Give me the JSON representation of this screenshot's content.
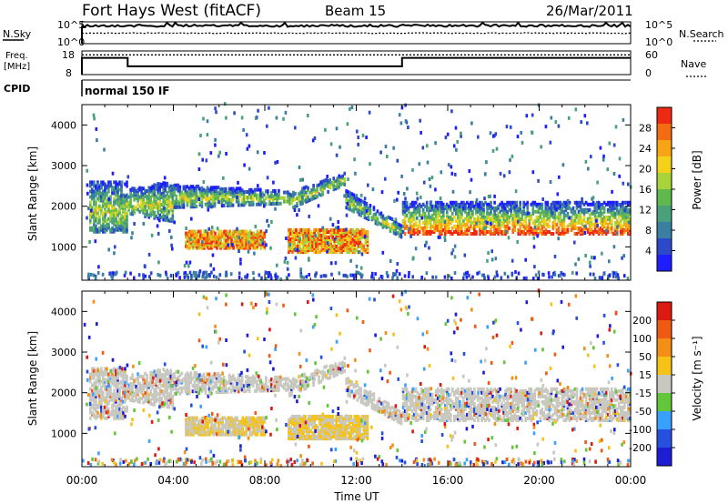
{
  "header": {
    "station": "Fort Hays West (fitACF)",
    "beam": "Beam 15",
    "date": "26/Mar/2011"
  },
  "labels": {
    "nsky": "N.Sky",
    "nsearch": "N.Search",
    "freq_line1": "Freq.",
    "freq_line2": "[MHz]",
    "nave": "Nave",
    "cpid": "CPID",
    "cpid_value": "normal 150 IF"
  },
  "colors": {
    "power": [
      "#1d1dff",
      "#2b49c8",
      "#3a7fa0",
      "#4aa07a",
      "#61b84e",
      "#a8d43a",
      "#f5d21a",
      "#f7a514",
      "#f36b12",
      "#ee2a12"
    ],
    "velocity": [
      "#1d1dd6",
      "#2850e0",
      "#39a0ff",
      "#63c63a",
      "#c8c8c0",
      "#f5c318",
      "#f28f14",
      "#ee5a14",
      "#dd1a12"
    ],
    "axis": "#000000"
  },
  "chart_data": [
    {
      "type": "line",
      "panel": "noise",
      "series": [
        {
          "name": "N.Sky",
          "style": "solid"
        },
        {
          "name": "N.Search",
          "style": "dotted"
        }
      ],
      "yticks_left": [
        "10^5",
        "10^0"
      ],
      "yticks_right": [
        "10^5",
        "10^0"
      ]
    },
    {
      "type": "line",
      "panel": "frequency",
      "series": [
        {
          "name": "Freq.",
          "style": "solid",
          "x": [
            "00:00",
            "02:00",
            "02:00",
            "14:00",
            "14:00",
            "24:00"
          ],
          "y": [
            14.7,
            14.7,
            11.1,
            11.1,
            14.7,
            14.7
          ]
        },
        {
          "name": "Nave",
          "style": "dotted",
          "x": [
            "00:00",
            "24:00"
          ],
          "y": [
            50,
            50
          ]
        }
      ],
      "yticks_left": [
        "18",
        "8"
      ],
      "yticks_right": [
        "60",
        "0"
      ]
    },
    {
      "type": "heatmap",
      "panel": "power",
      "ylabel": "Slant Range [km]",
      "ylim": [
        180,
        4500
      ],
      "yticks": [
        "1000",
        "2000",
        "3000",
        "4000"
      ],
      "xlim": [
        "00:00",
        "24:00"
      ],
      "colorbar_label": "Power [dB]",
      "colorbar_ticks": [
        "28",
        "24",
        "20",
        "16",
        "12",
        "8",
        "4"
      ],
      "features": [
        {
          "name": "far band",
          "start_h": 0.5,
          "end_h": 24,
          "range_km": [
            1400,
            2600
          ]
        },
        {
          "name": "near echo 1",
          "start_h": 4.5,
          "end_h": 8,
          "range_km": [
            950,
            1400
          ]
        },
        {
          "name": "near echo 2",
          "start_h": 9,
          "end_h": 12.5,
          "range_km": [
            850,
            1400
          ]
        }
      ]
    },
    {
      "type": "heatmap",
      "panel": "velocity",
      "ylabel": "Slant Range [km]",
      "ylim": [
        180,
        4500
      ],
      "yticks": [
        "1000",
        "2000",
        "3000",
        "4000"
      ],
      "xlabel": "Time UT",
      "xticks": [
        "00:00",
        "04:00",
        "08:00",
        "12:00",
        "16:00",
        "20:00",
        "00:00"
      ],
      "colorbar_label": "Velocity [m s⁻¹]",
      "colorbar_ticks": [
        "200",
        "100",
        "50",
        "15",
        "-15",
        "-50",
        "-100",
        "-200"
      ]
    }
  ]
}
